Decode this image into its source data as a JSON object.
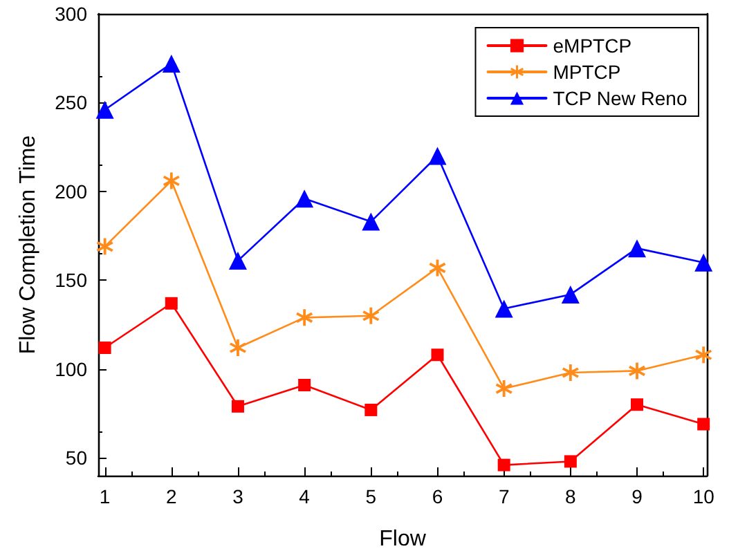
{
  "chart_data": {
    "type": "line",
    "xlabel": "Flow",
    "ylabel": "Flow Completion Time",
    "x": [
      1,
      2,
      3,
      4,
      5,
      6,
      7,
      8,
      9,
      10
    ],
    "xlim": [
      0.9,
      10.05
    ],
    "xticks": [
      1,
      2,
      3,
      4,
      5,
      6,
      7,
      8,
      9,
      10
    ],
    "ylim": [
      40,
      300
    ],
    "yticks": [
      50,
      100,
      150,
      200,
      250,
      300
    ],
    "grid": false,
    "legend": "top right",
    "line_style": "solid",
    "series": [
      {
        "name": "eMPTCP",
        "color": "#ff0000",
        "marker": "square",
        "values": [
          112,
          137,
          79,
          91,
          77,
          108,
          46,
          48,
          80,
          69
        ]
      },
      {
        "name": "MPTCP",
        "color": "#ff8c1a",
        "marker": "star",
        "values": [
          169,
          206,
          112,
          129,
          130,
          157,
          89,
          98,
          99,
          108
        ]
      },
      {
        "name": "TCP New Reno",
        "color": "#0000ff",
        "marker": "triangle",
        "values": [
          246,
          272,
          161,
          196,
          183,
          220,
          134,
          142,
          168,
          160
        ]
      }
    ]
  }
}
